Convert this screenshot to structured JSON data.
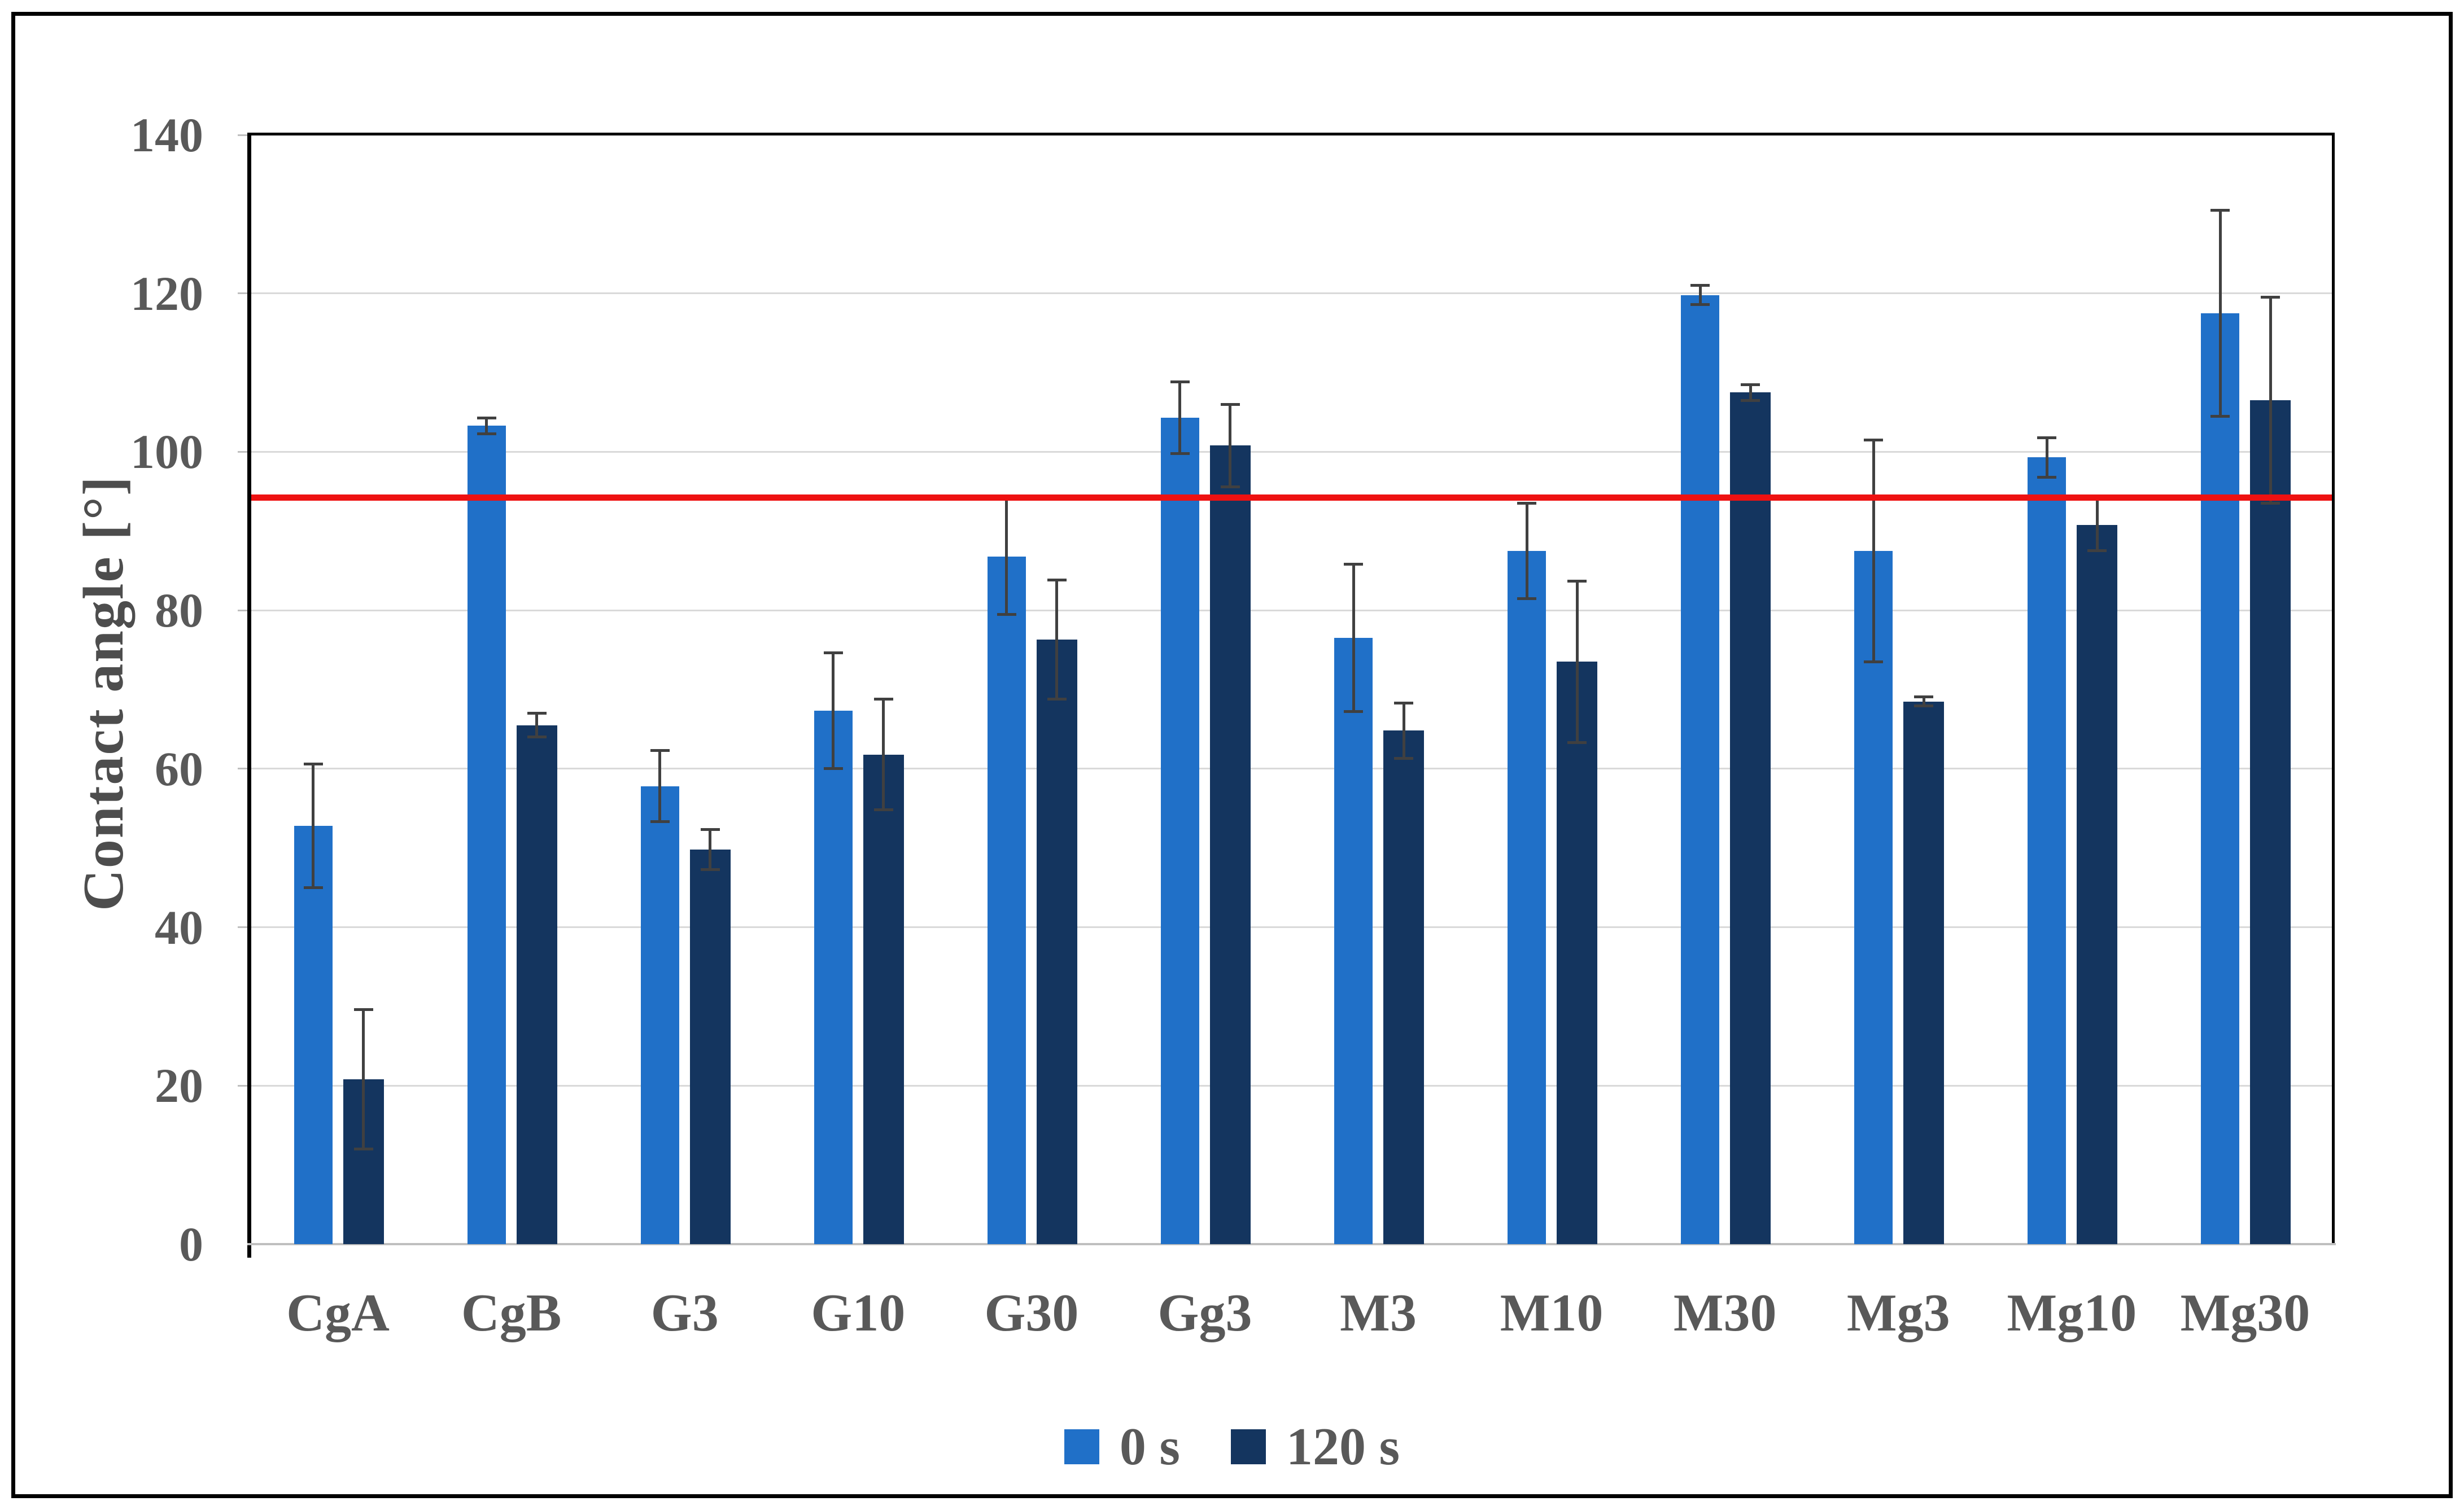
{
  "figure": {
    "background": "#FFFFFF",
    "border_color": "#000000",
    "text_color": "#595959",
    "gridline_color": "#D9D9D9",
    "x_axis_color": "#BFBFBF",
    "error_bar_color": "#404040"
  },
  "chart_data": {
    "type": "bar",
    "title": "",
    "xlabel": "",
    "ylabel": "Contact angle [°]",
    "ylim": [
      0,
      140
    ],
    "yticks": [
      0,
      20,
      40,
      60,
      80,
      100,
      120,
      140
    ],
    "grid": true,
    "legend_position": "bottom",
    "categories": [
      "CgA",
      "CgB",
      "G3",
      "G10",
      "G30",
      "Gg3",
      "M3",
      "M10",
      "M30",
      "Mg3",
      "Mg10",
      "Mg30"
    ],
    "series": [
      {
        "name": "0 s",
        "color": "#2070C8",
        "values": [
          52.8,
          103.3,
          57.8,
          67.3,
          86.8,
          104.3,
          76.5,
          87.5,
          119.8,
          87.5,
          99.3,
          117.5
        ],
        "errors": [
          7.8,
          1.0,
          4.5,
          7.3,
          7.3,
          4.5,
          9.3,
          6.0,
          1.2,
          14.0,
          2.5,
          13.0
        ]
      },
      {
        "name": "120 s",
        "color": "#14355F",
        "values": [
          20.8,
          65.5,
          49.8,
          61.8,
          76.3,
          100.8,
          64.8,
          73.5,
          107.5,
          68.5,
          90.8,
          106.5
        ],
        "errors": [
          8.8,
          1.5,
          2.5,
          7.0,
          7.5,
          5.2,
          3.5,
          10.2,
          1.0,
          0.6,
          3.3,
          13.0
        ]
      }
    ],
    "reference_line": {
      "value": 94.2,
      "color": "#EE1111"
    }
  }
}
